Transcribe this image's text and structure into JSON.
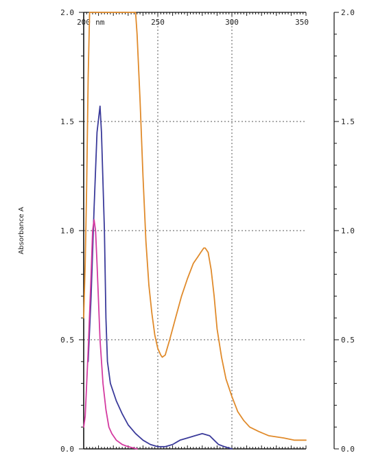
{
  "chart_data": {
    "type": "line",
    "xlabel": "nm",
    "ylabel": "Absorbance A",
    "xlim": [
      200,
      350
    ],
    "ylim": [
      0,
      2.0
    ],
    "x_ticks": [
      {
        "value": 200,
        "label": "200"
      },
      {
        "value": 250,
        "label": "250"
      },
      {
        "value": 300,
        "label": "300"
      },
      {
        "value": 350,
        "label": "350"
      }
    ],
    "y_ticks_left": [
      {
        "value": 0.0,
        "label": "0.0"
      },
      {
        "value": 0.5,
        "label": "0.5"
      },
      {
        "value": 1.0,
        "label": "1.0"
      },
      {
        "value": 1.5,
        "label": "1.5"
      },
      {
        "value": 2.0,
        "label": "2.0"
      }
    ],
    "y_ticks_right": [
      {
        "value": 0.0,
        "label": "0.0"
      },
      {
        "value": 0.5,
        "label": "0.5"
      },
      {
        "value": 1.0,
        "label": "1.0"
      },
      {
        "value": 1.5,
        "label": "1.5"
      },
      {
        "value": 2.0,
        "label": "2.0"
      }
    ],
    "grid": true,
    "series": [
      {
        "color": "#e08a2a",
        "points": [
          [
            200,
            0.6
          ],
          [
            201,
            0.85
          ],
          [
            202,
            1.2
          ],
          [
            203,
            1.7
          ],
          [
            204,
            2.0
          ],
          [
            214,
            2.0
          ],
          [
            235,
            2.0
          ],
          [
            236,
            1.9
          ],
          [
            238,
            1.6
          ],
          [
            240,
            1.25
          ],
          [
            242,
            0.95
          ],
          [
            244,
            0.75
          ],
          [
            246,
            0.62
          ],
          [
            248,
            0.52
          ],
          [
            250,
            0.46
          ],
          [
            252,
            0.43
          ],
          [
            253,
            0.42
          ],
          [
            255,
            0.43
          ],
          [
            258,
            0.5
          ],
          [
            262,
            0.6
          ],
          [
            266,
            0.7
          ],
          [
            270,
            0.78
          ],
          [
            274,
            0.85
          ],
          [
            277,
            0.88
          ],
          [
            279,
            0.9
          ],
          [
            281,
            0.92
          ],
          [
            282,
            0.92
          ],
          [
            284,
            0.9
          ],
          [
            286,
            0.82
          ],
          [
            288,
            0.7
          ],
          [
            290,
            0.55
          ],
          [
            293,
            0.42
          ],
          [
            296,
            0.32
          ],
          [
            300,
            0.24
          ],
          [
            304,
            0.17
          ],
          [
            308,
            0.13
          ],
          [
            312,
            0.1
          ],
          [
            318,
            0.08
          ],
          [
            325,
            0.06
          ],
          [
            335,
            0.05
          ],
          [
            342,
            0.04
          ],
          [
            350,
            0.04
          ]
        ]
      },
      {
        "color": "#3a3a9a",
        "points": [
          [
            203,
            0.4
          ],
          [
            205,
            0.7
          ],
          [
            207,
            1.1
          ],
          [
            209,
            1.45
          ],
          [
            211,
            1.57
          ],
          [
            212,
            1.45
          ],
          [
            214,
            1.0
          ],
          [
            215,
            0.6
          ],
          [
            216,
            0.4
          ],
          [
            218,
            0.3
          ],
          [
            222,
            0.22
          ],
          [
            226,
            0.16
          ],
          [
            230,
            0.11
          ],
          [
            235,
            0.07
          ],
          [
            240,
            0.04
          ],
          [
            245,
            0.02
          ],
          [
            250,
            0.01
          ],
          [
            255,
            0.01
          ],
          [
            260,
            0.02
          ],
          [
            265,
            0.04
          ],
          [
            270,
            0.05
          ],
          [
            275,
            0.06
          ],
          [
            280,
            0.07
          ],
          [
            285,
            0.06
          ],
          [
            288,
            0.04
          ],
          [
            291,
            0.02
          ],
          [
            295,
            0.01
          ],
          [
            300,
            0.0
          ]
        ]
      },
      {
        "color": "#d43aa0",
        "points": [
          [
            200,
            0.1
          ],
          [
            201,
            0.15
          ],
          [
            203,
            0.45
          ],
          [
            205,
            0.8
          ],
          [
            206,
            1.0
          ],
          [
            207,
            1.05
          ],
          [
            208,
            1.0
          ],
          [
            209,
            0.85
          ],
          [
            211,
            0.5
          ],
          [
            213,
            0.3
          ],
          [
            215,
            0.18
          ],
          [
            217,
            0.1
          ],
          [
            219,
            0.07
          ],
          [
            222,
            0.04
          ],
          [
            226,
            0.02
          ],
          [
            230,
            0.01
          ],
          [
            236,
            0.0
          ]
        ]
      }
    ]
  }
}
